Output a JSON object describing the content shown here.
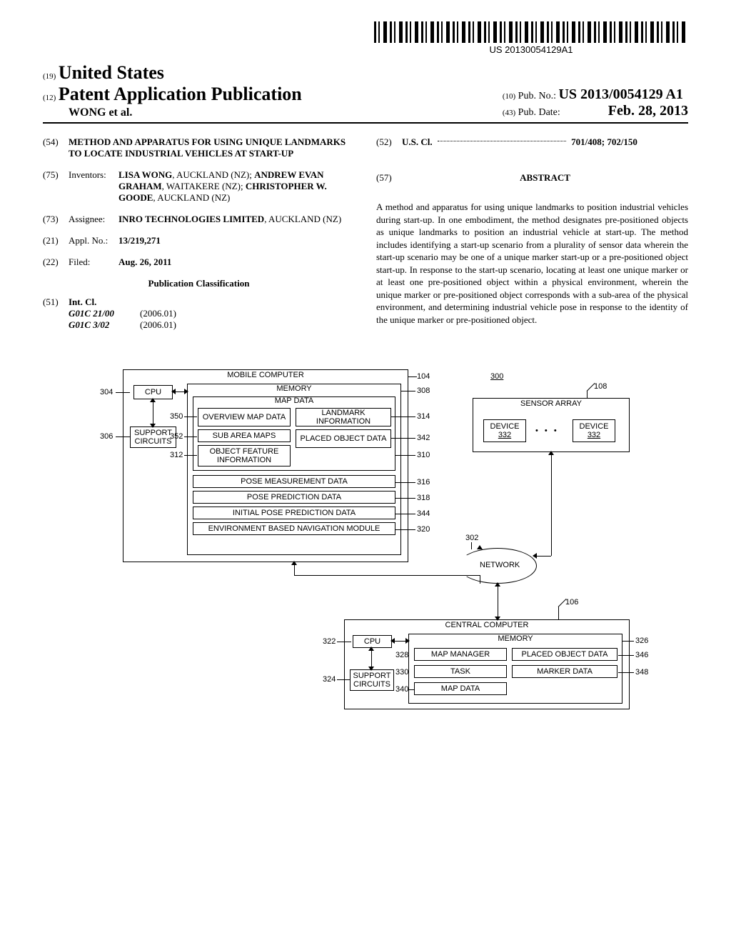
{
  "barcode_text": "US 20130054129A1",
  "header": {
    "country_code": "(19)",
    "country": "United States",
    "pub_type_code": "(12)",
    "pub_type": "Patent Application Publication",
    "authors_short": "WONG et al.",
    "pub_no_code": "(10)",
    "pub_no_label": "Pub. No.:",
    "pub_no": "US 2013/0054129 A1",
    "pub_date_code": "(43)",
    "pub_date_label": "Pub. Date:",
    "pub_date": "Feb. 28, 2013"
  },
  "biblio": {
    "title_code": "(54)",
    "title": "METHOD AND APPARATUS FOR USING UNIQUE LANDMARKS TO LOCATE INDUSTRIAL VEHICLES AT START-UP",
    "inventors_code": "(75)",
    "inventors_label": "Inventors:",
    "inventors_html": "<b>LISA WONG</b>, AUCKLAND (NZ); <b>ANDREW EVAN GRAHAM</b>, WAITAKERE (NZ); <b>CHRISTOPHER W. GOODE</b>, AUCKLAND (NZ)",
    "assignee_code": "(73)",
    "assignee_label": "Assignee:",
    "assignee_html": "<b>INRO TECHNOLOGIES LIMITED</b>, AUCKLAND (NZ)",
    "appl_code": "(21)",
    "appl_label": "Appl. No.:",
    "appl_no": "13/219,271",
    "filed_code": "(22)",
    "filed_label": "Filed:",
    "filed_date": "Aug. 26, 2011",
    "classification_heading": "Publication Classification",
    "int_cl_code": "(51)",
    "int_cl_label": "Int. Cl.",
    "int_cl": [
      {
        "code": "G01C 21/00",
        "ver": "(2006.01)"
      },
      {
        "code": "G01C 3/02",
        "ver": "(2006.01)"
      }
    ],
    "us_cl_code": "(52)",
    "us_cl_label": "U.S. Cl.",
    "us_cl_value": "701/408; 702/150",
    "abstract_code": "(57)",
    "abstract_heading": "ABSTRACT",
    "abstract": "A method and apparatus for using unique landmarks to position industrial vehicles during start-up. In one embodiment, the method designates pre-positioned objects as unique landmarks to position an industrial vehicle at start-up. The method includes identifying a start-up scenario from a plurality of sensor data wherein the start-up scenario may be one of a unique marker start-up or a pre-positioned object start-up. In response to the start-up scenario, locating at least one unique marker or at least one pre-positioned object within a physical environment, wherein the unique marker or pre-positioned object corresponds with a sub-area of the physical environment, and determining industrial vehicle pose in response to the identity of the unique marker or pre-positioned object."
  },
  "diagram": {
    "mobile_title": "MOBILE COMPUTER",
    "memory": "MEMORY",
    "map_data": "MAP DATA",
    "cpu": "CPU",
    "support_circuits": "SUPPORT CIRCUITS",
    "overview_map": "OVERVIEW MAP DATA",
    "landmark_info": "LANDMARK INFORMATION",
    "sub_area_maps": "SUB AREA MAPS",
    "placed_object_data": "PLACED OBJECT DATA",
    "object_feature": "OBJECT FEATURE INFORMATION",
    "pose_measurement": "POSE MEASUREMENT DATA",
    "pose_prediction": "POSE PREDICTION DATA",
    "initial_pose": "INITIAL POSE PREDICTION DATA",
    "env_nav": "ENVIRONMENT BASED NAVIGATION MODULE",
    "sensor_array": "SENSOR ARRAY",
    "device": "DEVICE",
    "device_num": "332",
    "network": "NETWORK",
    "central_title": "CENTRAL COMPUTER",
    "map_manager": "MAP MANAGER",
    "task": "TASK",
    "marker_data": "MARKER DATA",
    "refs": {
      "r104": "104",
      "r108": "108",
      "r300": "300",
      "r304": "304",
      "r306": "306",
      "r308": "308",
      "r310": "310",
      "r312": "312",
      "r314": "314",
      "r316": "316",
      "r318": "318",
      "r320": "320",
      "r322": "322",
      "r324": "324",
      "r326": "326",
      "r328": "328",
      "r330": "330",
      "r332": "332",
      "r340": "340",
      "r342": "342",
      "r344": "344",
      "r346": "346",
      "r348": "348",
      "r350": "350",
      "r352": "352",
      "r302": "302",
      "r106": "106"
    }
  }
}
